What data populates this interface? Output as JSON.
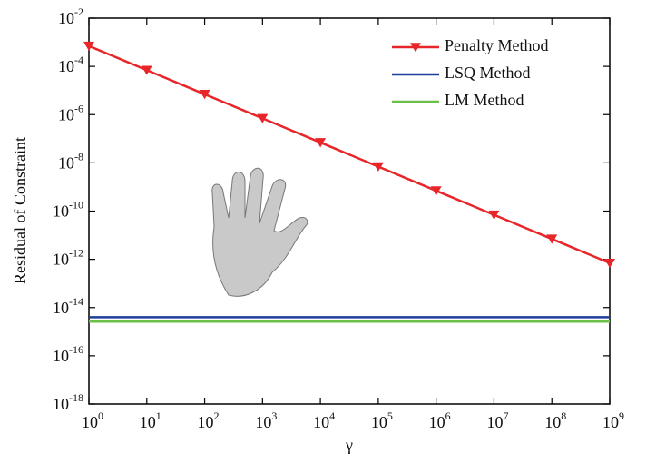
{
  "chart_data": {
    "type": "line",
    "x_label": "γ",
    "y_label": "Residual of Constraint",
    "xscale": "log",
    "yscale": "log",
    "xlim": [
      1,
      1000000000
    ],
    "ylim": [
      1e-18,
      0.01
    ],
    "xticks": [
      {
        "value": 1,
        "label": "10",
        "exponent": "0"
      },
      {
        "value": 10,
        "label": "10",
        "exponent": "1"
      },
      {
        "value": 100,
        "label": "10",
        "exponent": "2"
      },
      {
        "value": 1000,
        "label": "10",
        "exponent": "3"
      },
      {
        "value": 10000,
        "label": "10",
        "exponent": "4"
      },
      {
        "value": 100000,
        "label": "10",
        "exponent": "5"
      },
      {
        "value": 1000000,
        "label": "10",
        "exponent": "6"
      },
      {
        "value": 10000000,
        "label": "10",
        "exponent": "7"
      },
      {
        "value": 100000000,
        "label": "10",
        "exponent": "8"
      },
      {
        "value": 1000000000,
        "label": "10",
        "exponent": "9"
      }
    ],
    "yticks": [
      {
        "value": 1e-18,
        "label": "10",
        "exponent": "-18"
      },
      {
        "value": 1e-16,
        "label": "10",
        "exponent": "-16"
      },
      {
        "value": 1e-14,
        "label": "10",
        "exponent": "-14"
      },
      {
        "value": 1e-12,
        "label": "10",
        "exponent": "-12"
      },
      {
        "value": 1e-10,
        "label": "10",
        "exponent": "-10"
      },
      {
        "value": 1e-08,
        "label": "10",
        "exponent": "-8"
      },
      {
        "value": 1e-06,
        "label": "10",
        "exponent": "-6"
      },
      {
        "value": 0.0001,
        "label": "10",
        "exponent": "-4"
      },
      {
        "value": 0.01,
        "label": "10",
        "exponent": "-2"
      }
    ],
    "legend": "upper right",
    "x": [
      1,
      10,
      100,
      1000,
      10000,
      100000,
      1000000,
      10000000,
      100000000,
      1000000000
    ],
    "series": [
      {
        "name": "Penalty Method",
        "color": "#e8262a",
        "marker": "triangle-down",
        "values": [
          0.0007,
          7e-05,
          7e-06,
          7e-07,
          7e-08,
          7e-09,
          7e-10,
          7e-11,
          7e-12,
          7e-13
        ]
      },
      {
        "name": "LSQ Method",
        "color": "#1f3f9a",
        "marker": "none",
        "values": [
          4e-15,
          4e-15,
          4e-15,
          4e-15,
          4e-15,
          4e-15,
          4e-15,
          4e-15,
          4e-15,
          4e-15
        ]
      },
      {
        "name": "LM Method",
        "color": "#6cc04a",
        "marker": "none",
        "values": [
          2.6e-15,
          2.6e-15,
          2.6e-15,
          2.6e-15,
          2.6e-15,
          2.6e-15,
          2.6e-15,
          2.6e-15,
          2.6e-15,
          2.6e-15
        ]
      }
    ]
  }
}
